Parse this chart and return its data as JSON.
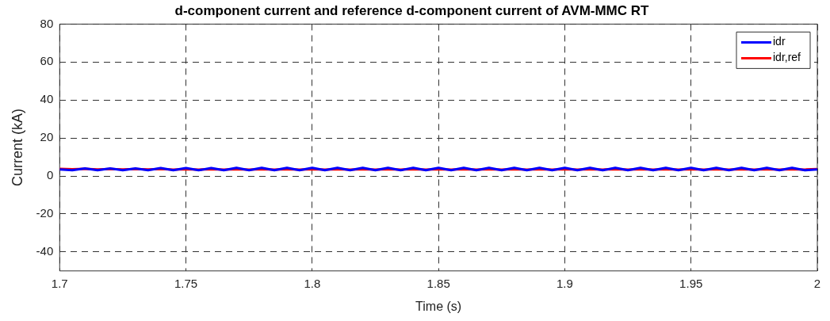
{
  "chart_data": {
    "type": "line",
    "title": "d-component current and reference d-component current of AVM-MMC RT",
    "xlabel": "Time (s)",
    "ylabel": "Current (kA)",
    "x": [
      1.7,
      1.705,
      1.71,
      1.715,
      1.72,
      1.725,
      1.73,
      1.735,
      1.74,
      1.745,
      1.75,
      1.755,
      1.76,
      1.765,
      1.77,
      1.775,
      1.78,
      1.785,
      1.79,
      1.795,
      1.8,
      1.805,
      1.81,
      1.815,
      1.82,
      1.825,
      1.83,
      1.835,
      1.84,
      1.845,
      1.85,
      1.855,
      1.86,
      1.865,
      1.87,
      1.875,
      1.88,
      1.885,
      1.89,
      1.895,
      1.9,
      1.905,
      1.91,
      1.915,
      1.92,
      1.925,
      1.93,
      1.935,
      1.94,
      1.945,
      1.95,
      1.955,
      1.96,
      1.965,
      1.97,
      1.975,
      1.98,
      1.985,
      1.99,
      1.995,
      2
    ],
    "series": [
      {
        "name": "idr",
        "color": "#0000ff",
        "values": [
          3.5,
          3.0,
          4.0,
          3.0,
          4.0,
          3.0,
          4.0,
          3.0,
          4.2,
          3.0,
          4.2,
          3.0,
          4.2,
          3.0,
          4.3,
          3.0,
          4.3,
          3.0,
          4.3,
          3.0,
          4.3,
          3.0,
          4.3,
          3.0,
          4.3,
          3.0,
          4.3,
          3.0,
          4.3,
          3.0,
          4.3,
          3.0,
          4.3,
          3.0,
          4.3,
          3.0,
          4.3,
          3.0,
          4.3,
          3.0,
          4.3,
          3.0,
          4.3,
          3.0,
          4.3,
          3.0,
          4.3,
          3.0,
          4.3,
          3.0,
          4.3,
          3.0,
          4.3,
          3.0,
          4.3,
          3.0,
          4.3,
          3.0,
          4.3,
          3.0,
          3.5
        ]
      },
      {
        "name": "idr,ref",
        "color": "#ff0000",
        "values": [
          3.8,
          3.6,
          3.8,
          3.5,
          3.7,
          3.5,
          3.7,
          3.5,
          3.7,
          3.4,
          3.6,
          3.4,
          3.6,
          3.4,
          3.6,
          3.4,
          3.6,
          3.4,
          3.6,
          3.4,
          3.6,
          3.4,
          3.6,
          3.4,
          3.6,
          3.4,
          3.6,
          3.4,
          3.6,
          3.4,
          3.6,
          3.4,
          3.6,
          3.4,
          3.6,
          3.4,
          3.6,
          3.4,
          3.6,
          3.4,
          3.6,
          3.4,
          3.6,
          3.4,
          3.6,
          3.4,
          3.6,
          3.4,
          3.6,
          3.4,
          3.6,
          3.4,
          3.6,
          3.4,
          3.6,
          3.4,
          3.6,
          3.4,
          3.6,
          3.4,
          3.7
        ]
      }
    ],
    "xlim": [
      1.7,
      2
    ],
    "xticks": [
      1.7,
      1.75,
      1.8,
      1.85,
      1.9,
      1.95,
      2
    ],
    "ylim": [
      -50,
      80
    ],
    "yticks": [
      -40,
      -20,
      0,
      20,
      40,
      60,
      80
    ],
    "grid": true,
    "legend": "top right",
    "marker": "none",
    "line_style": "solid"
  }
}
